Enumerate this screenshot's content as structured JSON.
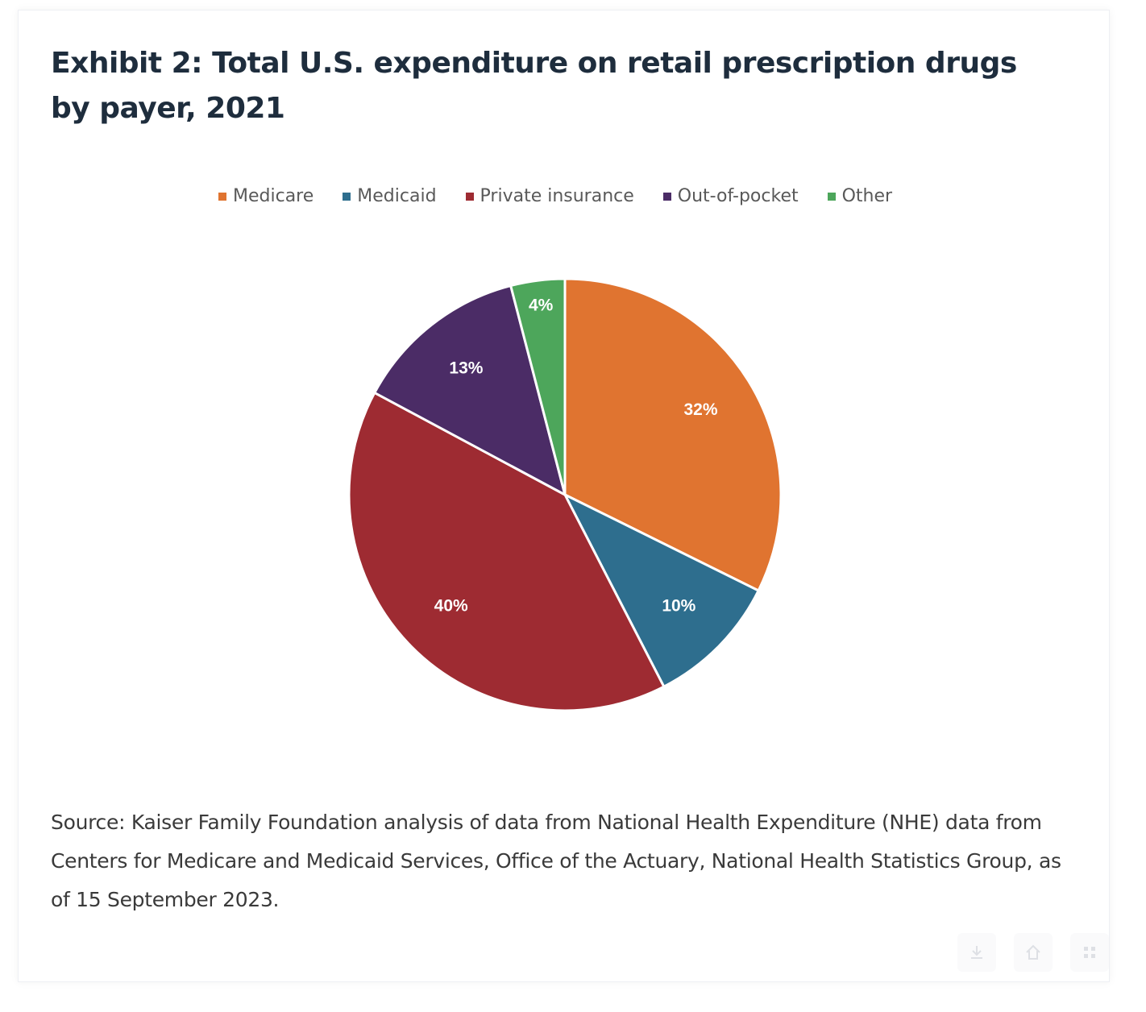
{
  "title": "Exhibit 2: Total U.S. expenditure on retail prescription drugs by payer, 2021",
  "source": "Source: Kaiser Family Foundation analysis of data from National Health Expenditure (NHE) data from Centers for Medicare and Medicaid Services, Office of the Actuary, National Health Statistics Group, as of 15 September 2023.",
  "chart_data": {
    "type": "pie",
    "title": "Exhibit 2: Total U.S. expenditure on retail prescription drugs by payer, 2021",
    "legend_position": "top",
    "start_angle": "12 o'clock",
    "direction": "clockwise",
    "slices": [
      {
        "label": "Medicare",
        "value": 32,
        "display": "32%",
        "color": "#E07430"
      },
      {
        "label": "Medicaid",
        "value": 10,
        "display": "10%",
        "color": "#2E6E8E"
      },
      {
        "label": "Private insurance",
        "value": 40,
        "display": "40%",
        "color": "#9E2B32"
      },
      {
        "label": "Out-of-pocket",
        "value": 13,
        "display": "13%",
        "color": "#4B2C66"
      },
      {
        "label": "Other",
        "value": 4,
        "display": "4%",
        "color": "#4DA65B"
      }
    ]
  },
  "toolbar": {
    "icons": [
      "download-icon",
      "home-icon",
      "grid-icon"
    ]
  }
}
